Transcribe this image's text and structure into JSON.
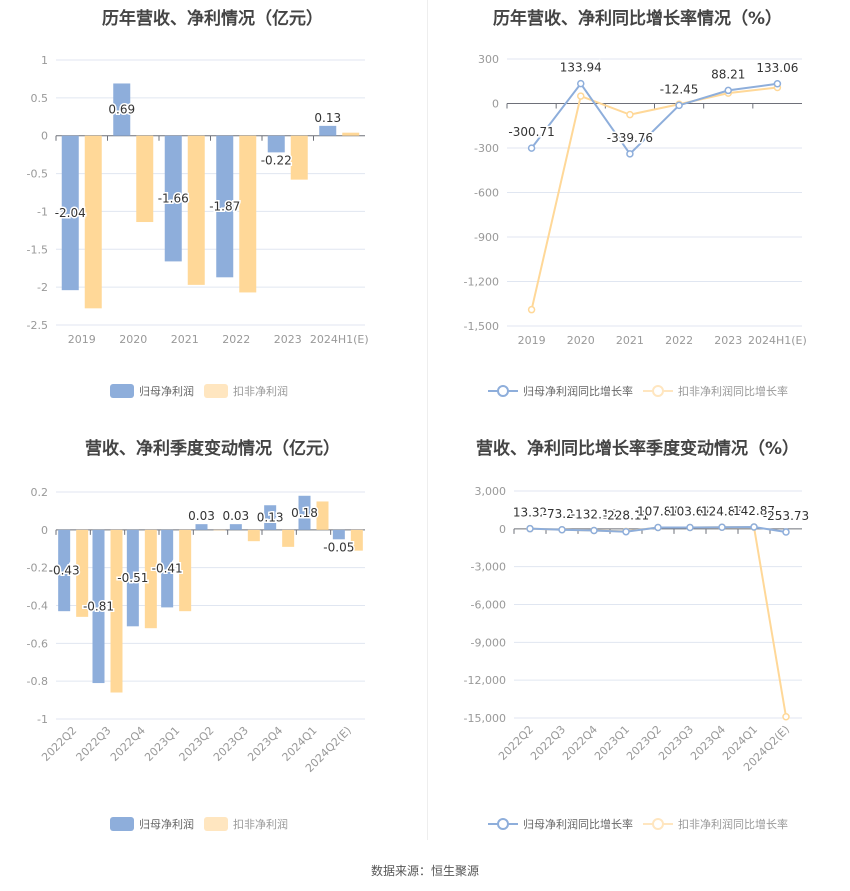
{
  "colors": {
    "net_profit": "#8eaedb",
    "deducted": "#ffd898",
    "deducted_legend": "#ffe6c0",
    "grid": "#e0e6f1",
    "axis": "#666666"
  },
  "source": "数据来源：恒生聚源",
  "chart_data": [
    {
      "type": "bar",
      "title": "历年营收、净利情况（亿元）",
      "categories": [
        "2019",
        "2020",
        "2021",
        "2022",
        "2023",
        "2024H1(E)"
      ],
      "ylim": [
        -2.5,
        1
      ],
      "yticks": [
        1,
        0.5,
        0,
        -0.5,
        -1,
        -1.5,
        -2,
        -2.5
      ],
      "ytick_labels": [
        "1",
        "0.5",
        "0",
        "-0.5",
        "-1",
        "-1.5",
        "-2",
        "-2.5"
      ],
      "series": [
        {
          "name": "归母净利润",
          "values": [
            -2.04,
            0.69,
            -1.66,
            -1.87,
            -0.22,
            0.13
          ],
          "labels": [
            "-2.04",
            "0.69",
            "-1.66",
            "-1.87",
            "-0.22",
            "0.13"
          ]
        },
        {
          "name": "扣非净利润",
          "values": [
            -2.28,
            -1.14,
            -1.97,
            -2.07,
            -0.58,
            0.04
          ]
        }
      ],
      "legend": "bottom"
    },
    {
      "type": "line",
      "title": "历年营收、净利同比增长率情况（%）",
      "categories": [
        "2019",
        "2020",
        "2021",
        "2022",
        "2023",
        "2024H1(E)"
      ],
      "ylim": [
        -1500,
        300
      ],
      "yticks": [
        300,
        0,
        -300,
        -600,
        -900,
        -1200,
        -1500
      ],
      "ytick_labels": [
        "300",
        "0",
        "-300",
        "-600",
        "-900",
        "-1,200",
        "-1,500"
      ],
      "series": [
        {
          "name": "归母净利润同比增长率",
          "values": [
            -300.71,
            133.94,
            -339.76,
            -12.45,
            88.21,
            133.06
          ],
          "labels": [
            "-300.71",
            "133.94",
            "-339.76",
            "-12.45",
            "88.21",
            "133.06"
          ]
        },
        {
          "name": "扣非净利润同比增长率",
          "values": [
            -1390,
            50,
            -75,
            -5,
            70,
            108
          ]
        }
      ],
      "legend": "bottom"
    },
    {
      "type": "bar",
      "title": "营收、净利季度变动情况（亿元）",
      "categories": [
        "2022Q2",
        "2022Q3",
        "2022Q4",
        "2023Q1",
        "2023Q2",
        "2023Q3",
        "2023Q4",
        "2024Q1",
        "2024Q2(E)"
      ],
      "ylim": [
        -1,
        0.2
      ],
      "yticks": [
        0.2,
        0,
        -0.2,
        -0.4,
        -0.6,
        -0.8,
        -1
      ],
      "ytick_labels": [
        "0.2",
        "0",
        "-0.2",
        "-0.4",
        "-0.6",
        "-0.8",
        "-1"
      ],
      "series": [
        {
          "name": "归母净利润",
          "values": [
            -0.43,
            -0.81,
            -0.51,
            -0.41,
            0.03,
            0.03,
            0.13,
            0.18,
            -0.05
          ],
          "labels": [
            "-0.43",
            "-0.81",
            "-0.51",
            "-0.41",
            "0.03",
            "0.03",
            "0.13",
            "0.18",
            "-0.05"
          ]
        },
        {
          "name": "扣非净利润",
          "values": [
            -0.46,
            -0.86,
            -0.52,
            -0.43,
            0.0,
            -0.06,
            -0.09,
            0.15,
            -0.11
          ]
        }
      ],
      "legend": "bottom"
    },
    {
      "type": "line",
      "title": "营收、净利同比增长率季度变动情况（%）",
      "categories": [
        "2022Q2",
        "2022Q3",
        "2022Q4",
        "2023Q1",
        "2023Q2",
        "2023Q3",
        "2023Q4",
        "2024Q1",
        "2024Q2(E)"
      ],
      "ylim": [
        -15000,
        3000
      ],
      "yticks": [
        3000,
        0,
        -3000,
        -6000,
        -9000,
        -12000,
        -15000
      ],
      "ytick_labels": [
        "3,000",
        "0",
        "-3,000",
        "-6,000",
        "-9,000",
        "-12,000",
        "-15,000"
      ],
      "series": [
        {
          "name": "归母净利润同比增长率",
          "values": [
            13.32,
            -73.21,
            -132.15,
            -228.11,
            107.87,
            103.67,
            124.85,
            142.87,
            -253.73
          ],
          "labels": [
            "13.32",
            "-73.21",
            "-132.15",
            "-228.11",
            "107.87",
            "103.67",
            "124.85",
            "142.87",
            "-253.73"
          ]
        },
        {
          "name": "扣非净利润同比增长率",
          "values": [
            13,
            -73,
            -130,
            -200,
            108,
            104,
            125,
            143,
            -14900
          ]
        }
      ],
      "legend": "bottom"
    }
  ]
}
